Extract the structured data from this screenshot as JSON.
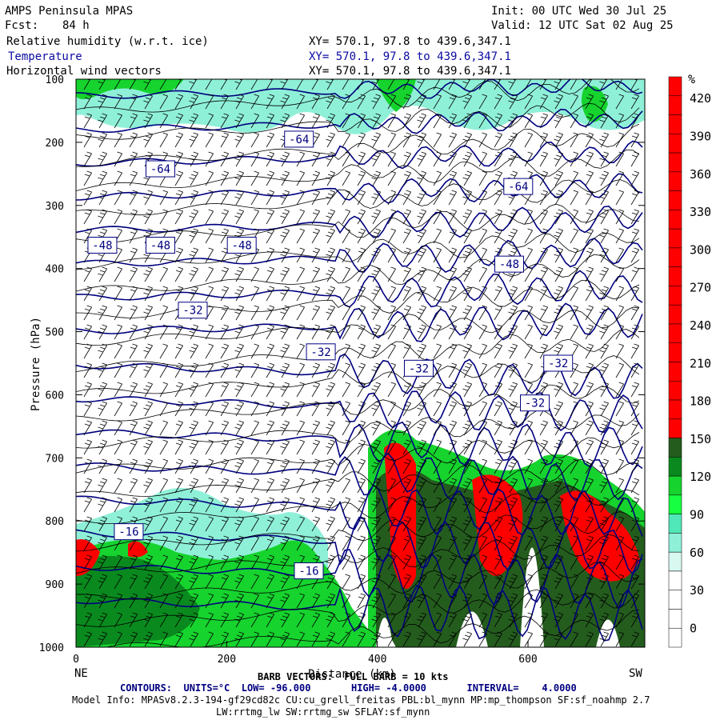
{
  "header": {
    "model": "AMPS Peninsula MPAS",
    "init": "Init: 00 UTC Wed 30 Jul 25",
    "fcst_label": "Fcst:",
    "fcst_value": "84 h",
    "valid": "Valid: 12 UTC Sat 02 Aug 25"
  },
  "fields": [
    {
      "name": "Relative humidity (w.r.t. ice)",
      "xy": "XY= 570.1, 97.8 to 439.6,347.1"
    },
    {
      "name": "Temperature",
      "xy": "XY= 570.1, 97.8 to 439.6,347.1"
    },
    {
      "name": "Horizontal wind vectors",
      "xy": "XY= 570.1, 97.8 to 439.6,347.1"
    }
  ],
  "footer": {
    "barb_note": "BARB VECTORS:  FULL BARB = 10 kts",
    "contours": "CONTOURS:  UNITS=°C  LOW= -96.000       HIGH= -4.0000       INTERVAL=    4.0000",
    "model_info": "Model Info: MPASv8.2.3-194-gf29cd82c CU:cu_grell_freitas PBL:bl_mynn MP:mp_thompson SF:sf_noahmp 2.7",
    "model_info2": "LW:rrtmg_lw SW:rrtmg_sw SFLAY:sf_mynn"
  },
  "colors": {
    "rh_light": "#8ff0d8",
    "rh_mid": "#16d32e",
    "rh_dark": "#0a8a1e",
    "rh_darkest": "#245c1e",
    "rh_red": "#ff0000",
    "temp_contour": "#000080",
    "theta_contour": "#000000"
  },
  "chart_data": {
    "type": "cross-section",
    "xlabel": "Distance (km)",
    "ylabel": "Pressure (hPa)",
    "x_endpoints": [
      "NE",
      "SW"
    ],
    "xlim": [
      0,
      755
    ],
    "ylim": [
      1000,
      100
    ],
    "x_ticks": [
      0,
      200,
      400,
      600
    ],
    "y_ticks": [
      100,
      200,
      300,
      400,
      500,
      600,
      700,
      800,
      900,
      1000
    ],
    "colorbar": {
      "unit": "%",
      "ticks": [
        0,
        30,
        60,
        90,
        120,
        150,
        180,
        210,
        240,
        270,
        300,
        330,
        360,
        390,
        420
      ]
    },
    "temperature_labels": [
      {
        "text": "-64",
        "x": 112,
        "p": 242
      },
      {
        "text": "-64",
        "x": 296,
        "p": 195
      },
      {
        "text": "-64",
        "x": 587,
        "p": 270
      },
      {
        "text": "-48",
        "x": 35,
        "p": 363
      },
      {
        "text": "-48",
        "x": 112,
        "p": 363
      },
      {
        "text": "-48",
        "x": 220,
        "p": 363
      },
      {
        "text": "-48",
        "x": 575,
        "p": 393
      },
      {
        "text": "-32",
        "x": 155,
        "p": 466
      },
      {
        "text": "-32",
        "x": 325,
        "p": 532
      },
      {
        "text": "-32",
        "x": 455,
        "p": 558
      },
      {
        "text": "-32",
        "x": 640,
        "p": 550
      },
      {
        "text": "-32",
        "x": 609,
        "p": 613
      },
      {
        "text": "-16",
        "x": 70,
        "p": 817
      },
      {
        "text": "-16",
        "x": 309,
        "p": 879
      }
    ]
  }
}
